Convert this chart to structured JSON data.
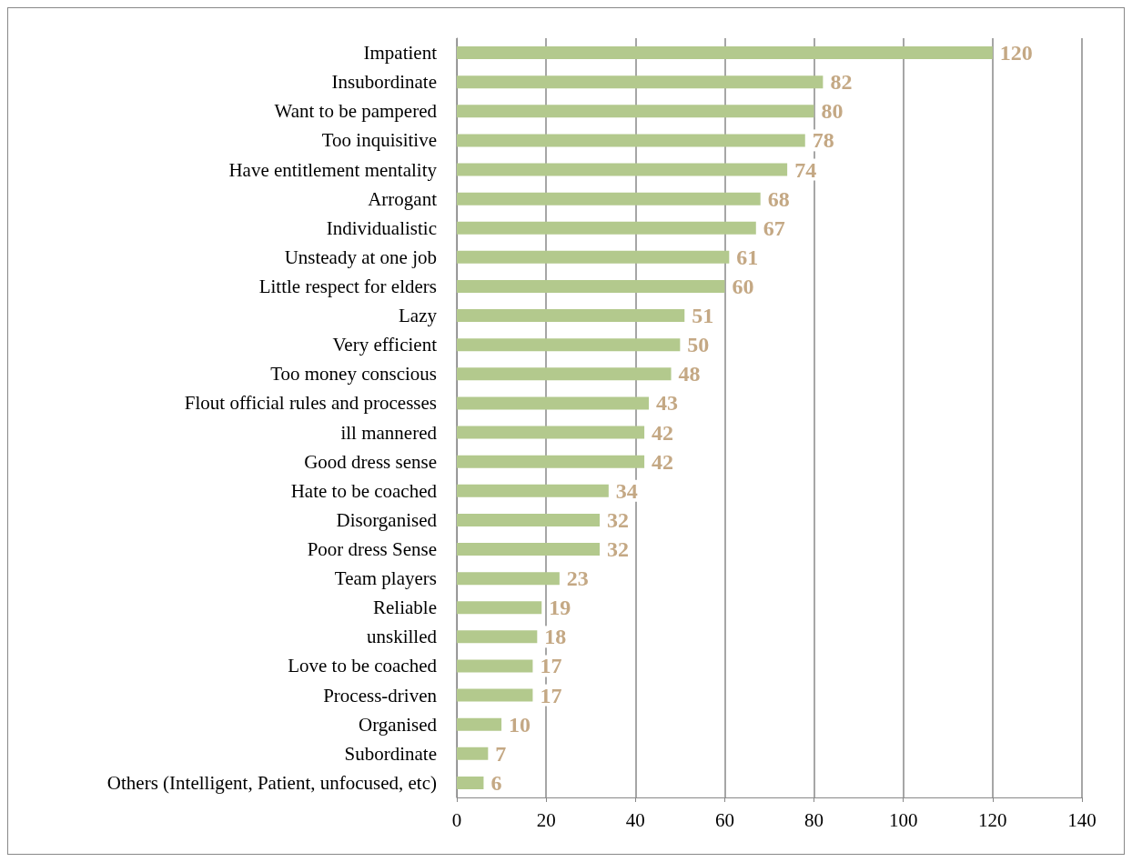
{
  "chart_data": {
    "type": "bar",
    "orientation": "horizontal",
    "categories": [
      "Impatient",
      "Insubordinate",
      "Want to be pampered",
      "Too inquisitive",
      "Have entitlement mentality",
      "Arrogant",
      "Individualistic",
      "Unsteady at one job",
      "Little respect for elders",
      "Lazy",
      "Very efficient",
      "Too money conscious",
      "Flout official rules and processes",
      "ill mannered",
      "Good dress sense",
      "Hate to be coached",
      "Disorganised",
      "Poor dress Sense",
      "Team players",
      "Reliable",
      "unskilled",
      "Love to be coached",
      "Process-driven",
      "Organised",
      "Subordinate",
      "Others (Intelligent, Patient, unfocused, etc)"
    ],
    "values": [
      120,
      82,
      80,
      78,
      74,
      68,
      67,
      61,
      60,
      51,
      50,
      48,
      43,
      42,
      42,
      34,
      32,
      32,
      23,
      19,
      18,
      17,
      17,
      10,
      7,
      6
    ],
    "color": "#b3c98d",
    "xlim": [
      0,
      140
    ],
    "xticks": [
      0,
      20,
      40,
      60,
      80,
      100,
      120,
      140
    ],
    "grid": "x",
    "data_labels": true
  }
}
